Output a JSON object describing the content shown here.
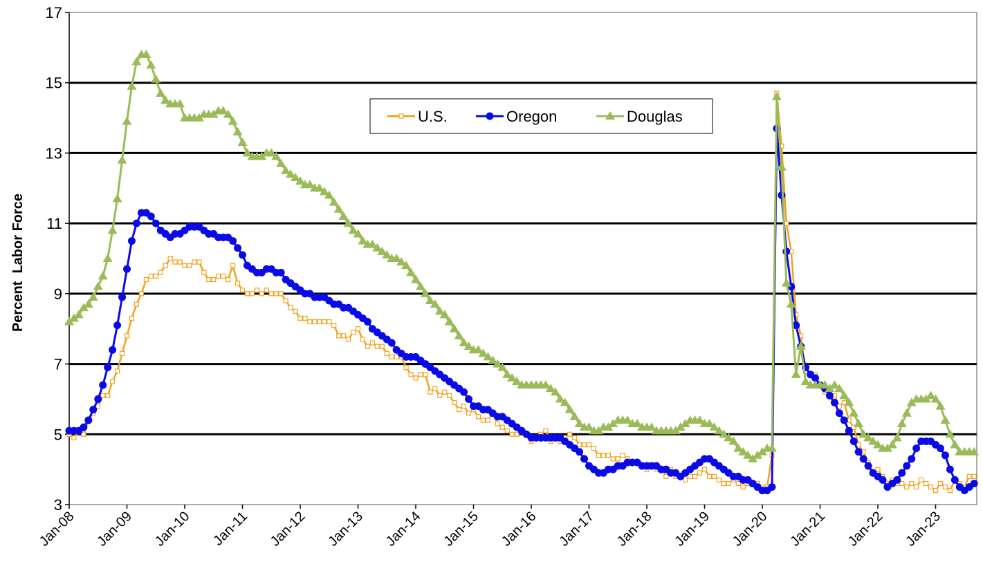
{
  "chart_data": {
    "type": "line",
    "y_label": "Percent  Labor Force",
    "categories": [
      "Jan-08",
      null,
      null,
      null,
      null,
      null,
      null,
      null,
      null,
      null,
      null,
      null,
      "Jan-09",
      null,
      null,
      null,
      null,
      null,
      null,
      null,
      null,
      null,
      null,
      null,
      "Jan-10",
      null,
      null,
      null,
      null,
      null,
      null,
      null,
      null,
      null,
      null,
      null,
      "Jan-11",
      null,
      null,
      null,
      null,
      null,
      null,
      null,
      null,
      null,
      null,
      null,
      "Jan-12",
      null,
      null,
      null,
      null,
      null,
      null,
      null,
      null,
      null,
      null,
      null,
      "Jan-13",
      null,
      null,
      null,
      null,
      null,
      null,
      null,
      null,
      null,
      null,
      null,
      "Jan-14",
      null,
      null,
      null,
      null,
      null,
      null,
      null,
      null,
      null,
      null,
      null,
      "Jan-15",
      null,
      null,
      null,
      null,
      null,
      null,
      null,
      null,
      null,
      null,
      null,
      "Jan-16",
      null,
      null,
      null,
      null,
      null,
      null,
      null,
      null,
      null,
      null,
      null,
      "Jan-17",
      null,
      null,
      null,
      null,
      null,
      null,
      null,
      null,
      null,
      null,
      null,
      "Jan-18",
      null,
      null,
      null,
      null,
      null,
      null,
      null,
      null,
      null,
      null,
      null,
      "Jan-19",
      null,
      null,
      null,
      null,
      null,
      null,
      null,
      null,
      null,
      null,
      null,
      "Jan-20",
      null,
      null,
      null,
      null,
      null,
      null,
      null,
      null,
      null,
      null,
      null,
      "Jan-21",
      null,
      null,
      null,
      null,
      null,
      null,
      null,
      null,
      null,
      null,
      null,
      "Jan-22",
      null,
      null,
      null,
      null,
      null,
      null,
      null,
      null,
      null,
      null,
      null,
      "Jan-23",
      null,
      null,
      null,
      null,
      null,
      null,
      null,
      null
    ],
    "series": [
      {
        "name": "U.S.",
        "color": "#f5a11c",
        "marker": "square",
        "values": [
          5.0,
          4.9,
          5.1,
          5.0,
          5.4,
          5.6,
          5.8,
          6.1,
          6.1,
          6.5,
          6.8,
          7.3,
          7.8,
          8.3,
          8.7,
          9.0,
          9.4,
          9.5,
          9.5,
          9.6,
          9.8,
          10.0,
          9.9,
          9.9,
          9.8,
          9.8,
          9.9,
          9.9,
          9.6,
          9.4,
          9.4,
          9.5,
          9.5,
          9.4,
          9.8,
          9.3,
          9.1,
          9.0,
          9.0,
          9.1,
          9.0,
          9.1,
          9.0,
          9.0,
          9.0,
          8.8,
          8.6,
          8.5,
          8.3,
          8.3,
          8.2,
          8.2,
          8.2,
          8.2,
          8.2,
          8.1,
          7.8,
          7.8,
          7.7,
          7.9,
          8.0,
          7.7,
          7.5,
          7.6,
          7.5,
          7.5,
          7.3,
          7.2,
          7.2,
          7.2,
          6.9,
          6.7,
          6.6,
          6.7,
          6.7,
          6.2,
          6.3,
          6.1,
          6.2,
          6.1,
          5.9,
          5.7,
          5.8,
          5.6,
          5.7,
          5.5,
          5.4,
          5.4,
          5.6,
          5.3,
          5.2,
          5.1,
          5.0,
          5.0,
          5.1,
          5.0,
          4.8,
          4.9,
          5.0,
          5.1,
          4.8,
          4.9,
          4.8,
          4.9,
          5.0,
          4.9,
          4.7,
          4.7,
          4.7,
          4.6,
          4.4,
          4.4,
          4.4,
          4.3,
          4.3,
          4.4,
          4.3,
          4.2,
          4.2,
          4.1,
          4.0,
          4.1,
          4.0,
          4.0,
          3.8,
          4.0,
          3.8,
          3.8,
          3.7,
          3.8,
          3.8,
          3.9,
          4.0,
          3.8,
          3.8,
          3.7,
          3.6,
          3.6,
          3.7,
          3.6,
          3.5,
          3.6,
          3.6,
          3.6,
          3.5,
          3.5,
          4.4,
          14.7,
          13.2,
          11.0,
          10.2,
          8.4,
          7.8,
          6.8,
          6.7,
          6.7,
          6.4,
          6.2,
          6.1,
          6.1,
          5.8,
          5.9,
          5.4,
          5.2,
          4.7,
          4.5,
          4.2,
          3.9,
          4.0,
          3.8,
          3.6,
          3.7,
          3.6,
          3.6,
          3.5,
          3.6,
          3.5,
          3.7,
          3.6,
          3.5,
          3.4,
          3.6,
          3.5,
          3.4,
          3.7,
          3.6,
          3.5,
          3.8,
          3.8
        ]
      },
      {
        "name": "Oregon",
        "color": "#0a0ae6",
        "marker": "circle",
        "values": [
          5.1,
          5.1,
          5.1,
          5.2,
          5.4,
          5.7,
          6.0,
          6.4,
          6.9,
          7.4,
          8.1,
          8.9,
          9.7,
          10.5,
          11.0,
          11.3,
          11.3,
          11.2,
          11.0,
          10.8,
          10.7,
          10.6,
          10.7,
          10.7,
          10.8,
          10.9,
          10.9,
          10.9,
          10.8,
          10.7,
          10.7,
          10.6,
          10.6,
          10.6,
          10.5,
          10.3,
          10.1,
          9.8,
          9.7,
          9.6,
          9.6,
          9.7,
          9.7,
          9.6,
          9.6,
          9.4,
          9.3,
          9.2,
          9.1,
          9.0,
          9.0,
          8.9,
          8.9,
          8.9,
          8.8,
          8.7,
          8.7,
          8.6,
          8.6,
          8.5,
          8.4,
          8.3,
          8.2,
          8.0,
          7.9,
          7.8,
          7.7,
          7.6,
          7.4,
          7.3,
          7.2,
          7.2,
          7.2,
          7.1,
          7.0,
          6.9,
          6.8,
          6.7,
          6.6,
          6.5,
          6.4,
          6.3,
          6.2,
          6.0,
          5.8,
          5.8,
          5.7,
          5.7,
          5.6,
          5.5,
          5.5,
          5.4,
          5.3,
          5.2,
          5.1,
          5.0,
          4.9,
          4.9,
          4.9,
          4.9,
          4.9,
          4.9,
          4.9,
          4.8,
          4.7,
          4.6,
          4.5,
          4.3,
          4.1,
          4.0,
          3.9,
          3.9,
          4.0,
          4.0,
          4.1,
          4.1,
          4.2,
          4.2,
          4.2,
          4.1,
          4.1,
          4.1,
          4.1,
          4.0,
          4.0,
          3.9,
          3.9,
          3.8,
          3.9,
          4.0,
          4.1,
          4.2,
          4.3,
          4.3,
          4.2,
          4.1,
          4.0,
          3.9,
          3.8,
          3.8,
          3.7,
          3.7,
          3.6,
          3.5,
          3.4,
          3.4,
          3.5,
          13.7,
          11.8,
          10.2,
          9.2,
          8.1,
          7.5,
          6.9,
          6.7,
          6.6,
          6.4,
          6.3,
          6.1,
          5.9,
          5.6,
          5.4,
          5.1,
          4.8,
          4.5,
          4.3,
          4.1,
          3.9,
          3.8,
          3.7,
          3.5,
          3.6,
          3.7,
          3.9,
          4.1,
          4.3,
          4.6,
          4.8,
          4.8,
          4.8,
          4.7,
          4.6,
          4.4,
          4.0,
          3.7,
          3.5,
          3.4,
          3.5,
          3.6
        ]
      },
      {
        "name": "Douglas",
        "color": "#9bbb59",
        "marker": "triangle",
        "values": [
          8.2,
          8.3,
          8.4,
          8.6,
          8.7,
          8.9,
          9.2,
          9.5,
          10.0,
          10.8,
          11.7,
          12.8,
          13.9,
          14.9,
          15.6,
          15.8,
          15.8,
          15.5,
          15.1,
          14.7,
          14.5,
          14.4,
          14.4,
          14.4,
          14.0,
          14.0,
          14.0,
          14.0,
          14.1,
          14.1,
          14.1,
          14.2,
          14.2,
          14.1,
          13.9,
          13.6,
          13.3,
          13.0,
          12.9,
          12.9,
          12.9,
          13.0,
          13.0,
          12.9,
          12.7,
          12.5,
          12.4,
          12.3,
          12.2,
          12.1,
          12.1,
          12.0,
          12.0,
          11.9,
          11.8,
          11.6,
          11.4,
          11.2,
          11.0,
          10.8,
          10.7,
          10.5,
          10.4,
          10.4,
          10.3,
          10.2,
          10.1,
          10.0,
          10.0,
          9.9,
          9.8,
          9.6,
          9.4,
          9.2,
          9.0,
          8.8,
          8.7,
          8.5,
          8.4,
          8.2,
          8.0,
          7.8,
          7.6,
          7.5,
          7.4,
          7.4,
          7.3,
          7.2,
          7.1,
          7.0,
          6.9,
          6.7,
          6.6,
          6.5,
          6.4,
          6.4,
          6.4,
          6.4,
          6.4,
          6.4,
          6.3,
          6.2,
          6.0,
          5.9,
          5.7,
          5.5,
          5.3,
          5.2,
          5.2,
          5.1,
          5.1,
          5.2,
          5.2,
          5.3,
          5.4,
          5.4,
          5.4,
          5.3,
          5.3,
          5.2,
          5.2,
          5.2,
          5.1,
          5.1,
          5.1,
          5.1,
          5.1,
          5.2,
          5.3,
          5.4,
          5.4,
          5.4,
          5.3,
          5.3,
          5.2,
          5.1,
          5.0,
          4.9,
          4.8,
          4.6,
          4.5,
          4.4,
          4.3,
          4.4,
          4.5,
          4.6,
          4.6,
          14.6,
          12.6,
          9.3,
          8.7,
          6.7,
          7.5,
          6.5,
          6.4,
          6.4,
          6.4,
          6.4,
          6.3,
          6.4,
          6.3,
          6.1,
          5.9,
          5.6,
          5.3,
          5.0,
          4.9,
          4.8,
          4.7,
          4.6,
          4.6,
          4.7,
          4.9,
          5.3,
          5.6,
          5.9,
          6.0,
          6.0,
          6.0,
          6.1,
          6.0,
          5.8,
          5.4,
          5.0,
          4.7,
          4.5,
          4.5,
          4.5,
          4.5
        ]
      }
    ],
    "ylim": [
      3,
      17
    ],
    "yticks": [
      3,
      5,
      7,
      9,
      11,
      13,
      15,
      17
    ],
    "grid": true
  }
}
